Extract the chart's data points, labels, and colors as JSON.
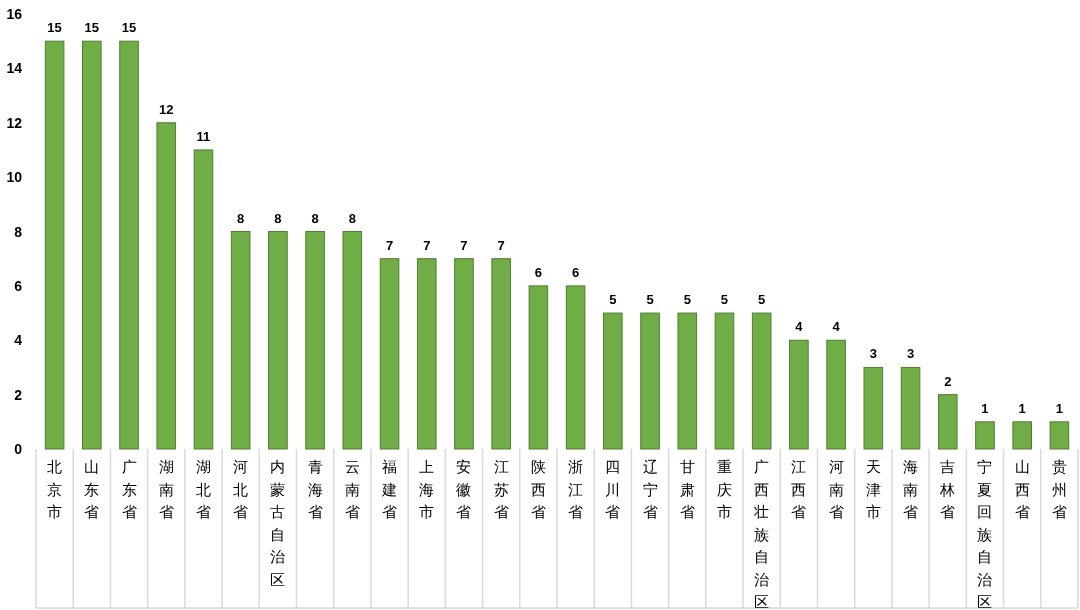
{
  "chart_data": {
    "type": "bar",
    "categories": [
      "北京市",
      "山东省",
      "广东省",
      "湖南省",
      "湖北省",
      "河北省",
      "内蒙古自治区",
      "青海省",
      "云南省",
      "福建省",
      "上海市",
      "安徽省",
      "江苏省",
      "陕西省",
      "浙江省",
      "四川省",
      "辽宁省",
      "甘肃省",
      "重庆市",
      "广西壮族自治区",
      "江西省",
      "河南省",
      "天津市",
      "海南省",
      "吉林省",
      "宁夏回族自治区",
      "山西省",
      "贵州省"
    ],
    "values": [
      15,
      15,
      15,
      12,
      11,
      8,
      8,
      8,
      8,
      7,
      7,
      7,
      7,
      6,
      6,
      5,
      5,
      5,
      5,
      5,
      4,
      4,
      3,
      3,
      2,
      1,
      1,
      1
    ],
    "color": "#70ad47",
    "ylim": [
      0,
      16
    ],
    "yticks": [
      0,
      2,
      4,
      6,
      8,
      10,
      12,
      14,
      16
    ],
    "data_labels": true,
    "grid": false
  }
}
